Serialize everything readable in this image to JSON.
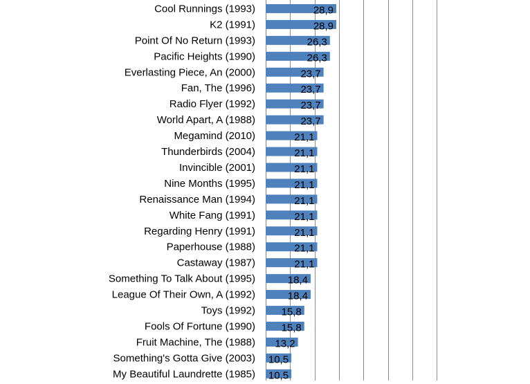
{
  "chart_data": {
    "type": "bar",
    "orientation": "horizontal",
    "title": "",
    "xlabel": "",
    "ylabel": "",
    "grid": true,
    "xlim": [
      0,
      100
    ],
    "x_gridlines": [
      0,
      10,
      20,
      30,
      40,
      50,
      60,
      70
    ],
    "bar_color": "#4f81bd",
    "categories": [
      "Cool Runnings (1993)",
      "K2 (1991)",
      "Point Of No Return (1993)",
      "Pacific Heights (1990)",
      "Everlasting Piece, An (2000)",
      "Fan, The (1996)",
      "Radio Flyer (1992)",
      "World Apart, A (1988)",
      "Megamind (2010)",
      "Thunderbirds (2004)",
      "Invincible (2001)",
      "Nine Months (1995)",
      "Renaissance Man (1994)",
      "White Fang (1991)",
      "Regarding Henry (1991)",
      "Paperhouse (1988)",
      "Castaway (1987)",
      "Something To Talk About (1995)",
      "League Of Their Own, A (1992)",
      "Toys (1992)",
      "Fools Of Fortune (1990)",
      "Fruit Machine, The (1988)",
      "Something's Gotta Give (2003)",
      "My Beautiful Laundrette (1985)"
    ],
    "values": [
      28.9,
      28.9,
      26.3,
      26.3,
      23.7,
      23.7,
      23.7,
      23.7,
      21.1,
      21.1,
      21.1,
      21.1,
      21.1,
      21.1,
      21.1,
      21.1,
      21.1,
      18.4,
      18.4,
      15.8,
      15.8,
      13.2,
      10.5,
      10.5
    ],
    "value_labels": [
      "28,9",
      "28,9",
      "26,3",
      "26,3",
      "23,7",
      "23,7",
      "23,7",
      "23,7",
      "21,1",
      "21,1",
      "21,1",
      "21,1",
      "21,1",
      "21,1",
      "21,1",
      "21,1",
      "21,1",
      "18,4",
      "18,4",
      "15,8",
      "15,8",
      "13,2",
      "10,5",
      "10,5"
    ]
  }
}
